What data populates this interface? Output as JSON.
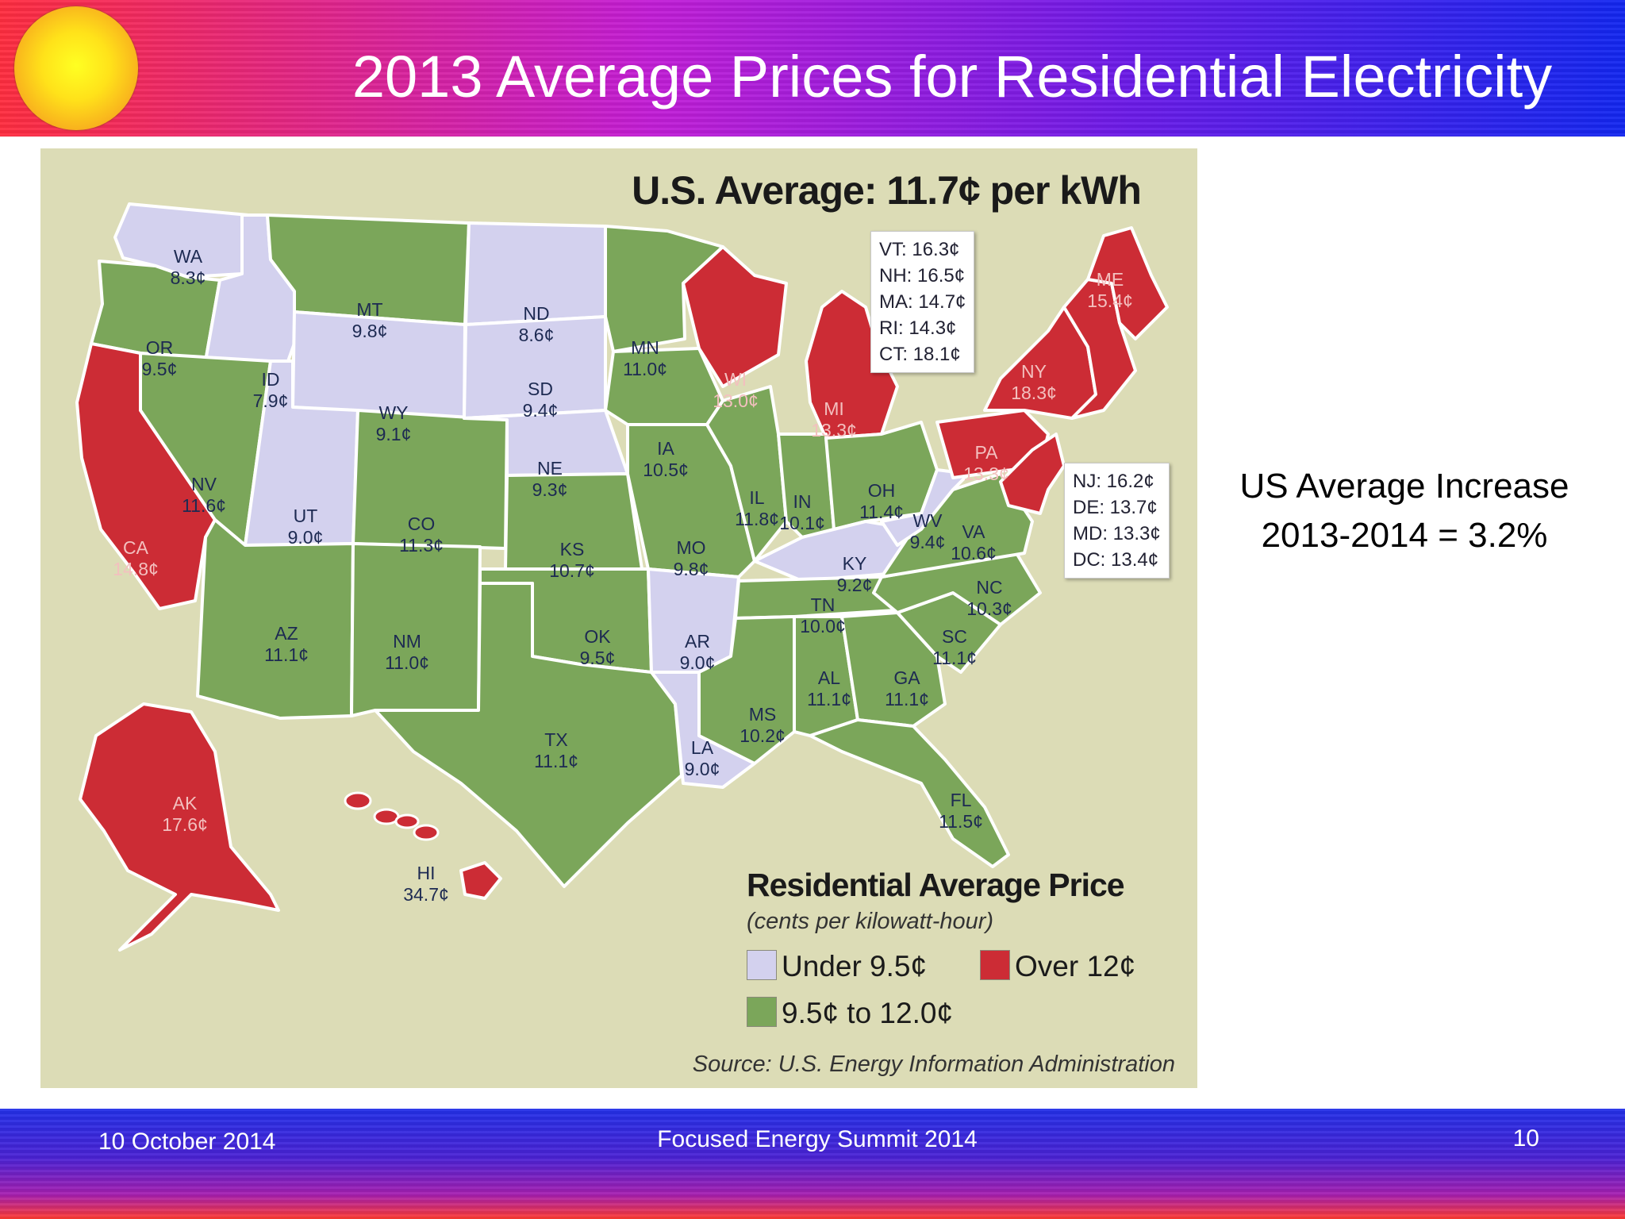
{
  "slide": {
    "title": "2013 Average Prices for Residential Electricity",
    "side_note": [
      "US Average Increase",
      "2013-2014 = 3.2%"
    ],
    "footer": {
      "date": "10 October 2014",
      "event": "Focused Energy Summit  2014",
      "page_number": "10"
    }
  },
  "map": {
    "headline": "U.S. Average: 11.7¢ per kWh",
    "legend": {
      "title": "Residential Average Price",
      "subtitle": "(cents per kilowatt-hour)",
      "categories": [
        {
          "id": "low",
          "label": "Under 9.5¢",
          "color": "#d3d1ee"
        },
        {
          "id": "high",
          "label": "Over 12¢",
          "color": "#cc2c35"
        },
        {
          "id": "mid",
          "label": "9.5¢ to 12.0¢",
          "color": "#7ba65a"
        }
      ]
    },
    "source": "Source: U.S. Energy Information Administration",
    "callout_northeast": [
      "VT: 16.3¢",
      "NH: 16.5¢",
      "MA: 14.7¢",
      "RI: 14.3¢",
      "CT: 18.1¢"
    ],
    "callout_midatlantic": [
      "NJ: 16.2¢",
      "DE: 13.7¢",
      "MD: 13.3¢",
      "DC: 13.4¢"
    ],
    "states": [
      {
        "abbr": "WA",
        "price": "8.3¢",
        "category": "low"
      },
      {
        "abbr": "OR",
        "price": "9.5¢",
        "category": "mid"
      },
      {
        "abbr": "CA",
        "price": "14.8¢",
        "category": "high"
      },
      {
        "abbr": "ID",
        "price": "7.9¢",
        "category": "low"
      },
      {
        "abbr": "NV",
        "price": "11.6¢",
        "category": "mid"
      },
      {
        "abbr": "MT",
        "price": "9.8¢",
        "category": "mid"
      },
      {
        "abbr": "WY",
        "price": "9.1¢",
        "category": "low"
      },
      {
        "abbr": "UT",
        "price": "9.0¢",
        "category": "low"
      },
      {
        "abbr": "AZ",
        "price": "11.1¢",
        "category": "mid"
      },
      {
        "abbr": "CO",
        "price": "11.3¢",
        "category": "mid"
      },
      {
        "abbr": "NM",
        "price": "11.0¢",
        "category": "mid"
      },
      {
        "abbr": "ND",
        "price": "8.6¢",
        "category": "low"
      },
      {
        "abbr": "SD",
        "price": "9.4¢",
        "category": "low"
      },
      {
        "abbr": "NE",
        "price": "9.3¢",
        "category": "low"
      },
      {
        "abbr": "KS",
        "price": "10.7¢",
        "category": "mid"
      },
      {
        "abbr": "OK",
        "price": "9.5¢",
        "category": "mid"
      },
      {
        "abbr": "TX",
        "price": "11.1¢",
        "category": "mid"
      },
      {
        "abbr": "MN",
        "price": "11.0¢",
        "category": "mid"
      },
      {
        "abbr": "IA",
        "price": "10.5¢",
        "category": "mid"
      },
      {
        "abbr": "MO",
        "price": "9.8¢",
        "category": "mid"
      },
      {
        "abbr": "AR",
        "price": "9.0¢",
        "category": "low"
      },
      {
        "abbr": "LA",
        "price": "9.0¢",
        "category": "low"
      },
      {
        "abbr": "WI",
        "price": "13.0¢",
        "category": "high"
      },
      {
        "abbr": "IL",
        "price": "11.8¢",
        "category": "mid"
      },
      {
        "abbr": "MI",
        "price": "13.3¢",
        "category": "high"
      },
      {
        "abbr": "IN",
        "price": "10.1¢",
        "category": "mid"
      },
      {
        "abbr": "OH",
        "price": "11.4¢",
        "category": "mid"
      },
      {
        "abbr": "KY",
        "price": "9.2¢",
        "category": "low"
      },
      {
        "abbr": "TN",
        "price": "10.0¢",
        "category": "mid"
      },
      {
        "abbr": "MS",
        "price": "10.2¢",
        "category": "mid"
      },
      {
        "abbr": "AL",
        "price": "11.1¢",
        "category": "mid"
      },
      {
        "abbr": "GA",
        "price": "11.1¢",
        "category": "mid"
      },
      {
        "abbr": "FL",
        "price": "11.5¢",
        "category": "mid"
      },
      {
        "abbr": "SC",
        "price": "11.1¢",
        "category": "mid"
      },
      {
        "abbr": "NC",
        "price": "10.3¢",
        "category": "mid"
      },
      {
        "abbr": "VA",
        "price": "10.6¢",
        "category": "mid"
      },
      {
        "abbr": "WV",
        "price": "9.4¢",
        "category": "low"
      },
      {
        "abbr": "PA",
        "price": "13.3¢",
        "category": "high"
      },
      {
        "abbr": "NY",
        "price": "18.3¢",
        "category": "high"
      },
      {
        "abbr": "ME",
        "price": "15.4¢",
        "category": "high"
      },
      {
        "abbr": "AK",
        "price": "17.6¢",
        "category": "high"
      },
      {
        "abbr": "HI",
        "price": "34.7¢",
        "category": "high"
      }
    ]
  }
}
